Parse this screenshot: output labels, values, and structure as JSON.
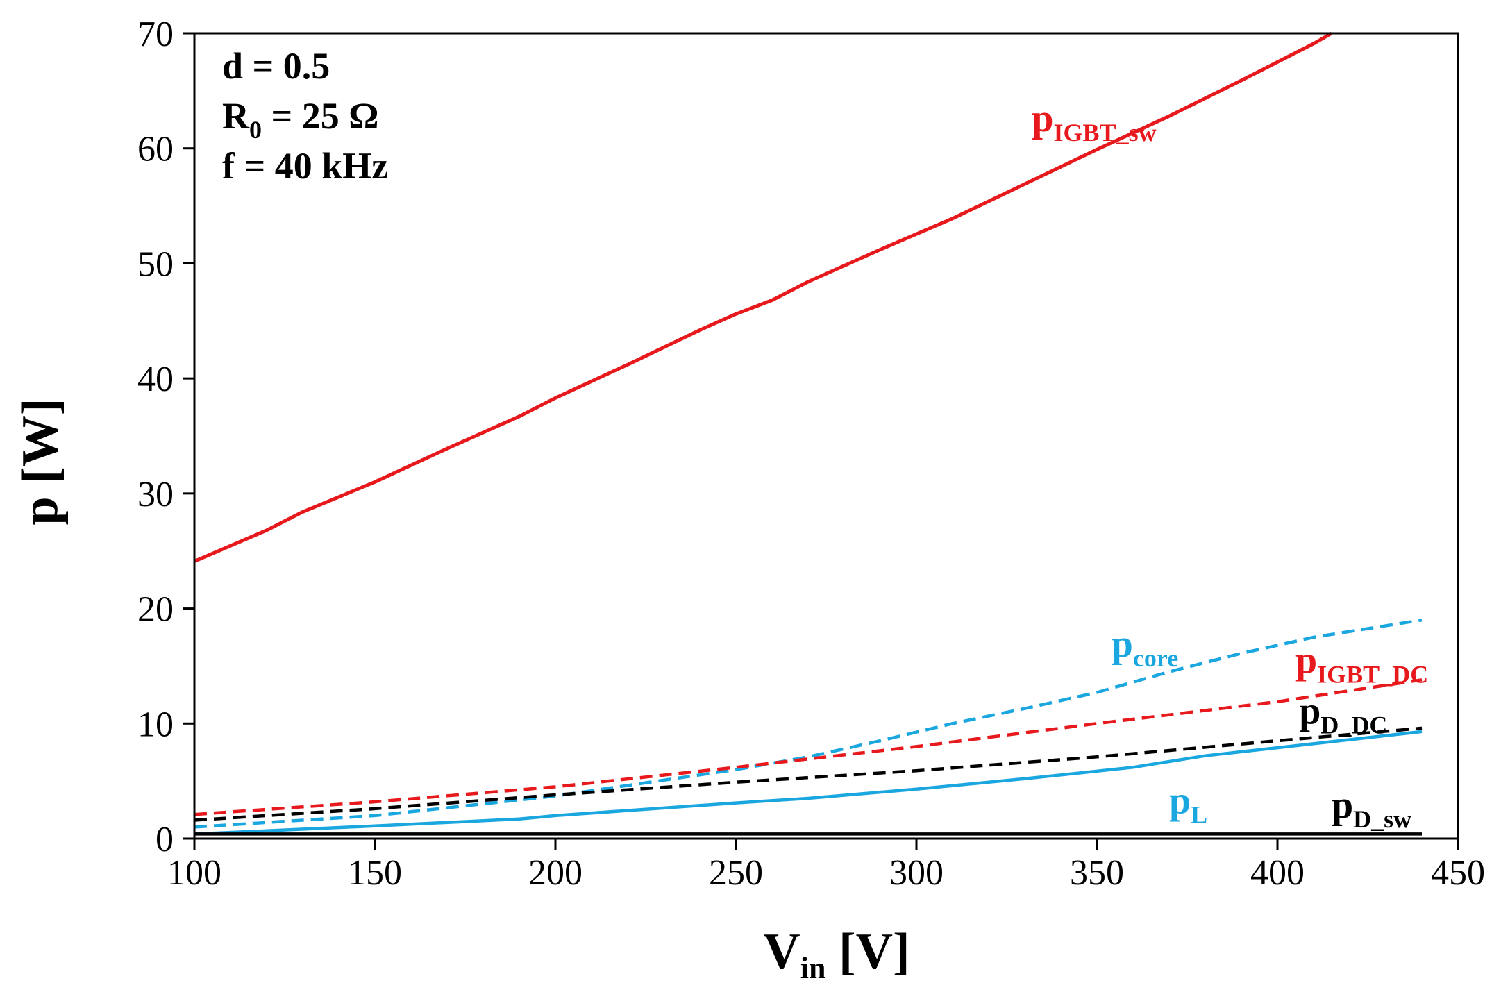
{
  "chart_data": {
    "type": "line",
    "title": "",
    "xlabel": "V",
    "xlabel_sub": "in",
    "xlabel_unit": " [V]",
    "ylabel": "p [W]",
    "xlim": [
      100,
      450
    ],
    "ylim": [
      0,
      70
    ],
    "xticks": [
      100,
      150,
      200,
      250,
      300,
      350,
      400,
      450
    ],
    "yticks": [
      0,
      10,
      20,
      30,
      40,
      50,
      60,
      70
    ],
    "grid": false,
    "legend": "none",
    "annotations": {
      "line1": "d = 0.5",
      "line2_main": "R",
      "line2_sub": "0",
      "line2_rest": " = 25 Ω",
      "line3": "f = 40 kHz"
    },
    "series": [
      {
        "name": "p_IGBT_sw",
        "label_main": "p",
        "label_sub": "IGBT_sw",
        "color": "#e8191c",
        "dash": "solid",
        "label_pos": [
          332,
          61.5
        ],
        "x": [
          100,
          120,
          130,
          150,
          170,
          190,
          200,
          220,
          240,
          250,
          260,
          270,
          290,
          310,
          330,
          350,
          370,
          390,
          410,
          415
        ],
        "y": [
          24.1,
          26.8,
          28.4,
          31.0,
          33.9,
          36.7,
          38.3,
          41.2,
          44.2,
          45.6,
          46.8,
          48.4,
          51.2,
          53.9,
          56.9,
          59.9,
          62.8,
          65.9,
          69.1,
          70.0
        ]
      },
      {
        "name": "p_core",
        "label_main": "p",
        "label_sub": "core",
        "color": "#1aa6df",
        "dash": "dashed",
        "label_pos": [
          354,
          15.8
        ],
        "x": [
          100,
          150,
          200,
          250,
          270,
          290,
          310,
          330,
          350,
          370,
          390,
          410,
          440
        ],
        "y": [
          1.0,
          2.0,
          3.7,
          6.0,
          7.1,
          8.5,
          10.0,
          11.3,
          12.7,
          14.5,
          16.1,
          17.5,
          19.0
        ]
      },
      {
        "name": "p_IGBT_DC",
        "label_main": "p",
        "label_sub": "IGBT_DC",
        "color": "#e8191c",
        "dash": "dashed",
        "label_pos": [
          405,
          14.4
        ],
        "x": [
          100,
          150,
          200,
          250,
          300,
          350,
          400,
          440
        ],
        "y": [
          2.1,
          3.2,
          4.5,
          6.2,
          8.0,
          10.0,
          11.9,
          13.8
        ]
      },
      {
        "name": "p_D_DC",
        "label_main": "p",
        "label_sub": "D_DC",
        "color": "#000000",
        "dash": "dashed",
        "label_pos": [
          406,
          10.0
        ],
        "x": [
          100,
          150,
          200,
          250,
          300,
          350,
          400,
          440
        ],
        "y": [
          1.6,
          2.6,
          3.8,
          4.9,
          5.9,
          7.1,
          8.5,
          9.6
        ]
      },
      {
        "name": "p_L",
        "label_main": "p",
        "label_sub": "L",
        "color": "#1aa6df",
        "dash": "solid",
        "label_pos": [
          370,
          2.2
        ],
        "x": [
          100,
          150,
          190,
          200,
          250,
          270,
          300,
          330,
          360,
          380,
          400,
          420,
          440
        ],
        "y": [
          0.4,
          1.1,
          1.7,
          2.0,
          3.1,
          3.5,
          4.3,
          5.2,
          6.2,
          7.2,
          7.9,
          8.6,
          9.3
        ]
      },
      {
        "name": "p_D_sw",
        "label_main": "p",
        "label_sub": "D_sw",
        "color": "#000000",
        "dash": "solid",
        "label_pos": [
          415,
          1.8
        ],
        "x": [
          100,
          440
        ],
        "y": [
          0.4,
          0.4
        ]
      }
    ]
  }
}
